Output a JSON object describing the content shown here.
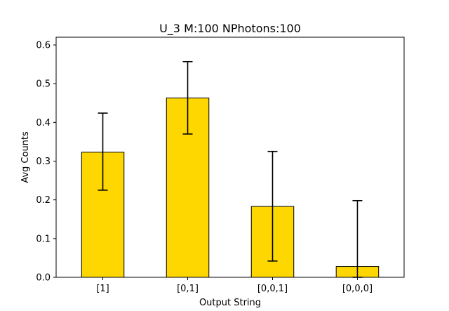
{
  "chart_data": {
    "type": "bar",
    "title": "U_3 M:100 NPhotons:100",
    "xlabel": "Output String",
    "ylabel": "Avg Counts",
    "categories": [
      "[1]",
      "[0,1]",
      "[0,0,1]",
      "[0,0,0]"
    ],
    "values": [
      0.323,
      0.463,
      0.183,
      0.028
    ],
    "errors_low": [
      0.225,
      0.37,
      0.042,
      0.0
    ],
    "errors_high": [
      0.424,
      0.557,
      0.325,
      0.198
    ],
    "ylim": [
      0,
      0.62
    ],
    "yticks": [
      0.0,
      0.1,
      0.2,
      0.3,
      0.4,
      0.5,
      0.6
    ],
    "ytick_labels": [
      "0.0",
      "0.1",
      "0.2",
      "0.3",
      "0.4",
      "0.5",
      "0.6"
    ],
    "grid": false,
    "legend": "none",
    "colors": {
      "bar_fill": "#FFD700",
      "bar_edge": "#000000",
      "error_bar": "#000000"
    }
  }
}
